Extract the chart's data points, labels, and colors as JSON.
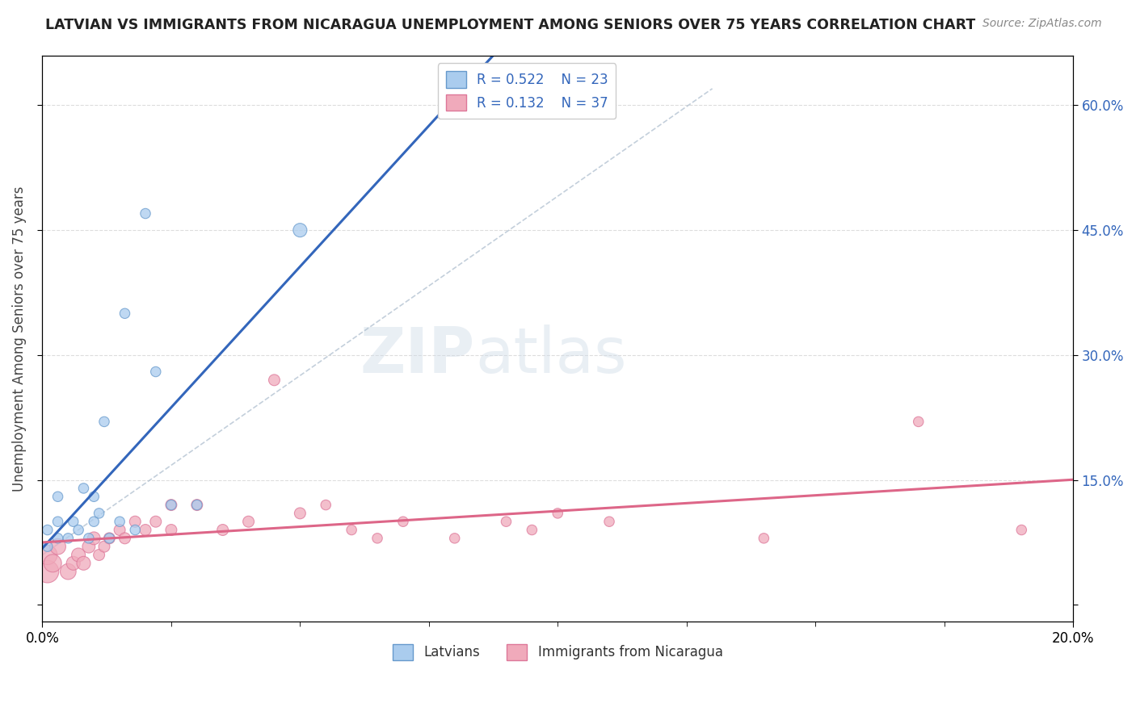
{
  "title": "LATVIAN VS IMMIGRANTS FROM NICARAGUA UNEMPLOYMENT AMONG SENIORS OVER 75 YEARS CORRELATION CHART",
  "source": "Source: ZipAtlas.com",
  "ylabel": "Unemployment Among Seniors over 75 years",
  "yticks_right_vals": [
    0.0,
    0.15,
    0.3,
    0.45,
    0.6
  ],
  "xlim": [
    0.0,
    0.2
  ],
  "ylim": [
    -0.02,
    0.66
  ],
  "watermark_zip": "ZIP",
  "watermark_atlas": "atlas",
  "latvian_R": 0.522,
  "latvian_N": 23,
  "nicaragua_R": 0.132,
  "nicaragua_N": 37,
  "latvian_color": "#aaccee",
  "nicaragua_color": "#f0aabb",
  "latvian_edge_color": "#6699cc",
  "nicaragua_edge_color": "#dd7799",
  "latvian_line_color": "#3366bb",
  "nicaragua_line_color": "#dd6688",
  "latvian_scatter_x": [
    0.001,
    0.001,
    0.003,
    0.003,
    0.003,
    0.005,
    0.006,
    0.007,
    0.008,
    0.009,
    0.01,
    0.01,
    0.011,
    0.012,
    0.013,
    0.015,
    0.016,
    0.018,
    0.02,
    0.022,
    0.025,
    0.03,
    0.05
  ],
  "latvian_scatter_y": [
    0.09,
    0.07,
    0.08,
    0.1,
    0.13,
    0.08,
    0.1,
    0.09,
    0.14,
    0.08,
    0.1,
    0.13,
    0.11,
    0.22,
    0.08,
    0.1,
    0.35,
    0.09,
    0.47,
    0.28,
    0.12,
    0.12,
    0.45
  ],
  "latvian_scatter_size": [
    80,
    80,
    80,
    80,
    80,
    80,
    80,
    80,
    80,
    80,
    80,
    80,
    80,
    80,
    80,
    80,
    80,
    80,
    80,
    80,
    80,
    80,
    150
  ],
  "nicaragua_scatter_x": [
    0.001,
    0.001,
    0.002,
    0.003,
    0.005,
    0.006,
    0.007,
    0.008,
    0.009,
    0.01,
    0.011,
    0.012,
    0.013,
    0.015,
    0.016,
    0.018,
    0.02,
    0.022,
    0.025,
    0.025,
    0.03,
    0.035,
    0.04,
    0.045,
    0.05,
    0.055,
    0.06,
    0.065,
    0.07,
    0.08,
    0.09,
    0.095,
    0.1,
    0.11,
    0.14,
    0.17,
    0.19
  ],
  "nicaragua_scatter_y": [
    0.04,
    0.06,
    0.05,
    0.07,
    0.04,
    0.05,
    0.06,
    0.05,
    0.07,
    0.08,
    0.06,
    0.07,
    0.08,
    0.09,
    0.08,
    0.1,
    0.09,
    0.1,
    0.12,
    0.09,
    0.12,
    0.09,
    0.1,
    0.27,
    0.11,
    0.12,
    0.09,
    0.08,
    0.1,
    0.08,
    0.1,
    0.09,
    0.11,
    0.1,
    0.08,
    0.22,
    0.09
  ],
  "nicaragua_scatter_size": [
    400,
    300,
    250,
    200,
    200,
    150,
    150,
    150,
    130,
    130,
    100,
    100,
    100,
    100,
    100,
    100,
    100,
    100,
    100,
    100,
    100,
    100,
    100,
    100,
    100,
    80,
    80,
    80,
    80,
    80,
    80,
    80,
    80,
    80,
    80,
    80,
    80
  ],
  "background_color": "#ffffff",
  "grid_color": "#dddddd",
  "diag_color": "#aabbcc"
}
